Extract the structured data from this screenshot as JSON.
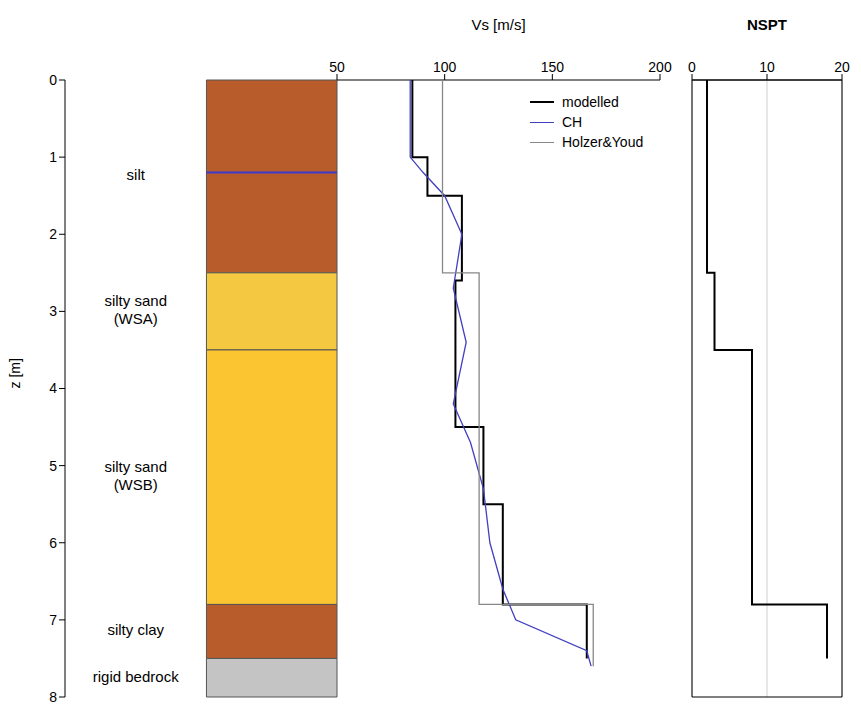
{
  "chart_data": [
    {
      "type": "column",
      "ylabel": "z [m]",
      "ylim": [
        0,
        8
      ],
      "yticks": [
        0,
        1,
        2,
        3,
        4,
        5,
        6,
        7,
        8
      ],
      "layers": [
        {
          "name": "silt",
          "top": 0,
          "bottom": 2.5,
          "color": "#b85c2c"
        },
        {
          "name": "silty sand (WSA)",
          "top": 2.5,
          "bottom": 3.5,
          "color": "#f5c842"
        },
        {
          "name": "silty sand (WSB)",
          "top": 3.5,
          "bottom": 6.8,
          "color": "#fbc531"
        },
        {
          "name": "silty clay",
          "top": 6.8,
          "bottom": 7.5,
          "color": "#b85c2c"
        },
        {
          "name": "rigid bedrock",
          "top": 7.5,
          "bottom": 8,
          "color": "#c4c4c4"
        }
      ],
      "water_table": 1.2
    },
    {
      "type": "line",
      "xlabel": "Vs [m/s]",
      "xlim": [
        50,
        200
      ],
      "xticks": [
        50,
        100,
        150,
        200
      ],
      "ylim": [
        0,
        8
      ],
      "grid": false,
      "legend": "upper right",
      "tick_labels": "x",
      "series": [
        {
          "name": "modelled",
          "color": "#000000",
          "x": [
            85,
            85,
            92,
            92,
            108,
            108,
            105,
            105,
            118,
            118,
            127,
            127,
            166,
            166
          ],
          "y": [
            0,
            1,
            1,
            1.5,
            1.5,
            2.6,
            2.6,
            4.5,
            4.5,
            5.5,
            5.5,
            6.8,
            6.8,
            7.5
          ]
        },
        {
          "name": "CH",
          "color": "#4040c0",
          "x": [
            84,
            84,
            90,
            100,
            108,
            104,
            110,
            104,
            112,
            118,
            121,
            127,
            133,
            166,
            168
          ],
          "y": [
            0,
            1,
            1.2,
            1.5,
            2,
            2.7,
            3.4,
            4.2,
            4.7,
            5.3,
            6,
            6.6,
            7,
            7.4,
            7.6
          ]
        },
        {
          "name": "Holzer&Youd",
          "color": "#888888",
          "x": [
            99,
            99,
            116,
            116,
            169,
            169
          ],
          "y": [
            0,
            2.5,
            2.5,
            6.8,
            6.8,
            7.6
          ]
        }
      ]
    },
    {
      "type": "line",
      "xlabel": "NSPT",
      "xlim": [
        0,
        20
      ],
      "xticks": [
        0,
        10,
        20
      ],
      "ylim": [
        0,
        8
      ],
      "yticks": [
        0,
        1,
        2,
        3,
        4,
        5,
        6,
        7,
        8
      ],
      "grid": true,
      "tick_labels": "x",
      "series": [
        {
          "color": "#000000",
          "x": [
            2,
            2,
            3,
            3,
            8,
            8,
            18,
            18
          ],
          "y": [
            0,
            2.5,
            2.5,
            3.5,
            3.5,
            6.8,
            6.8,
            7.5
          ]
        }
      ]
    }
  ]
}
